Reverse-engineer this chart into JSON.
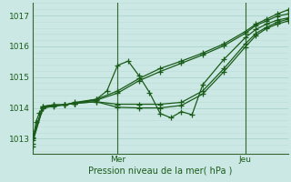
{
  "title": "Pression niveau de la mer( hPa )",
  "xlabel_mer": "Mer",
  "xlabel_jeu": "Jeu",
  "bg_color": "#cce8e4",
  "grid_color_major": "#aad4cc",
  "grid_color_minor": "#bbddd8",
  "line_color": "#1a5c1a",
  "spine_color": "#336633",
  "ylim": [
    1012.5,
    1017.4
  ],
  "xlim": [
    0,
    72
  ],
  "yticks": [
    1013,
    1014,
    1015,
    1016,
    1017
  ],
  "mer_x": 24,
  "jeu_x": 60,
  "series": [
    [
      0,
      1012.75,
      1,
      1013.55,
      2,
      1013.85,
      3,
      1014.0,
      6,
      1014.08,
      9,
      1014.1,
      12,
      1014.15,
      18,
      1014.28,
      24,
      1014.55,
      30,
      1014.95,
      36,
      1015.28,
      42,
      1015.52,
      48,
      1015.78,
      54,
      1016.08,
      60,
      1016.48,
      63,
      1016.72,
      66,
      1016.88,
      69,
      1017.05,
      72,
      1017.18
    ],
    [
      0,
      1012.85,
      3,
      1014.02,
      6,
      1014.07,
      9,
      1014.1,
      12,
      1014.15,
      18,
      1014.25,
      24,
      1014.48,
      30,
      1014.88,
      36,
      1015.18,
      42,
      1015.45,
      48,
      1015.72,
      54,
      1016.02,
      60,
      1016.42,
      63,
      1016.68,
      66,
      1016.82,
      69,
      1016.98,
      72,
      1017.05
    ],
    [
      0,
      1012.95,
      3,
      1014.05,
      6,
      1014.1,
      9,
      1014.1,
      12,
      1014.18,
      18,
      1014.28,
      21,
      1014.55,
      24,
      1015.38,
      27,
      1015.52,
      30,
      1015.05,
      33,
      1014.5,
      36,
      1013.82,
      39,
      1013.68,
      42,
      1013.88,
      45,
      1013.78,
      48,
      1014.75,
      54,
      1015.58,
      60,
      1016.28,
      63,
      1016.55,
      66,
      1016.72,
      69,
      1016.85,
      72,
      1016.92
    ],
    [
      0,
      1013.05,
      3,
      1014.05,
      6,
      1014.1,
      9,
      1014.1,
      12,
      1014.15,
      18,
      1014.2,
      24,
      1014.02,
      30,
      1014.0,
      36,
      1014.0,
      42,
      1014.08,
      48,
      1014.45,
      54,
      1015.18,
      60,
      1015.98,
      63,
      1016.35,
      66,
      1016.58,
      69,
      1016.72,
      72,
      1016.82
    ],
    [
      0,
      1013.0,
      3,
      1014.0,
      6,
      1014.05,
      9,
      1014.1,
      12,
      1014.15,
      18,
      1014.2,
      24,
      1014.12,
      30,
      1014.12,
      36,
      1014.12,
      42,
      1014.18,
      48,
      1014.55,
      54,
      1015.28,
      60,
      1016.08,
      63,
      1016.42,
      66,
      1016.62,
      69,
      1016.78,
      72,
      1016.88
    ]
  ]
}
